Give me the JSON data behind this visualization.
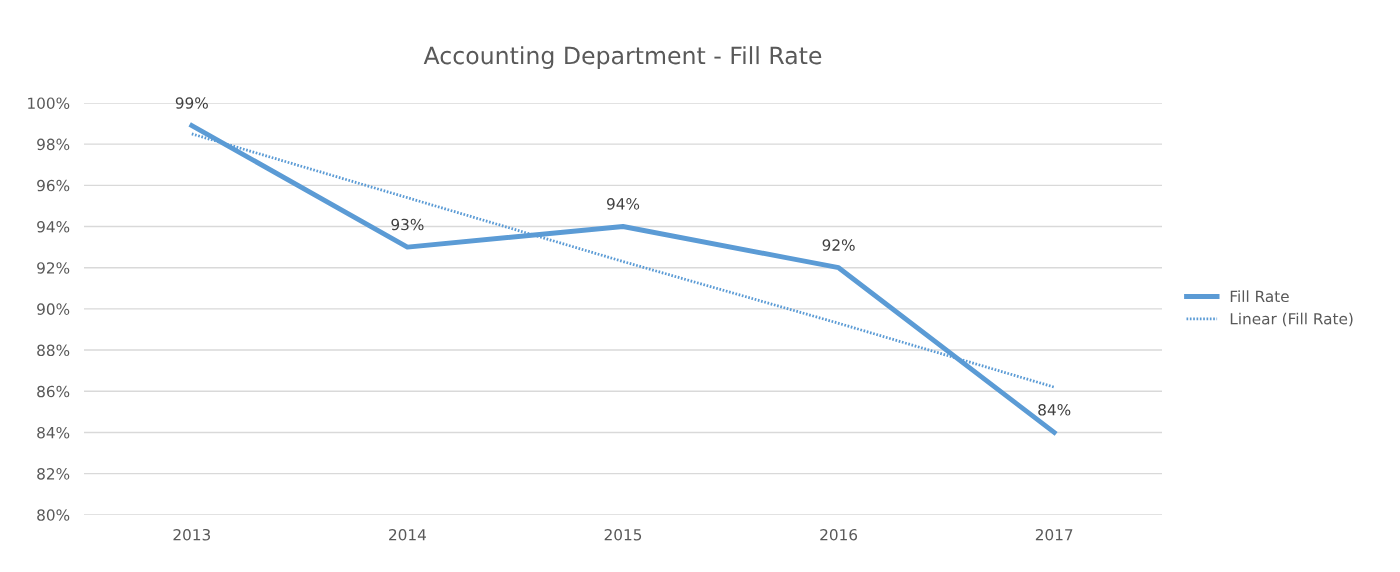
{
  "chart_data": {
    "type": "line",
    "title": "Accounting Department - Fill Rate",
    "categories": [
      "2013",
      "2014",
      "2015",
      "2016",
      "2017"
    ],
    "series": [
      {
        "name": "Fill Rate",
        "color": "#5b9bd5",
        "values": [
          98.9,
          93,
          94,
          92,
          84
        ],
        "value_labels": [
          "99%",
          "93%",
          "94%",
          "92%",
          "84%"
        ],
        "line_style": "solid"
      },
      {
        "name": "Linear (Fill Rate)",
        "color": "#5b9bd5",
        "values": [
          98.5,
          95.4,
          92.3,
          89.3,
          86.2
        ],
        "line_style": "dotted"
      }
    ],
    "ylim": [
      80,
      100
    ],
    "yticks": [
      {
        "value": 80,
        "label": "80%"
      },
      {
        "value": 82,
        "label": "82%"
      },
      {
        "value": 84,
        "label": "84%"
      },
      {
        "value": 86,
        "label": "86%"
      },
      {
        "value": 88,
        "label": "88%"
      },
      {
        "value": 90,
        "label": "90%"
      },
      {
        "value": 92,
        "label": "92%"
      },
      {
        "value": 94,
        "label": "94%"
      },
      {
        "value": 96,
        "label": "96%"
      },
      {
        "value": 98,
        "label": "98%"
      },
      {
        "value": 100,
        "label": "100%"
      }
    ],
    "grid": "y",
    "legend": "right",
    "marker": "none"
  }
}
